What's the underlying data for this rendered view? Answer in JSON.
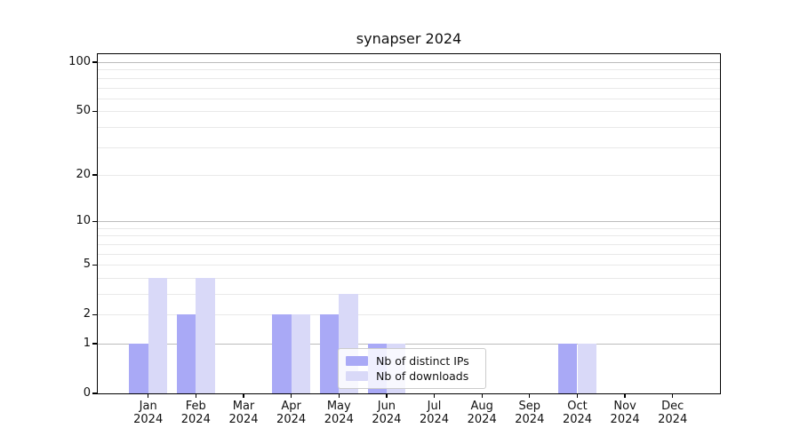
{
  "title": "synapser 2024",
  "legend": {
    "items": [
      {
        "label": "Nb of distinct IPs",
        "series": "ips"
      },
      {
        "label": "Nb of downloads",
        "series": "downloads"
      }
    ]
  },
  "colors": {
    "distinct_ips_bar": "#a9a9f6",
    "downloads_bar": "#d9d9f8",
    "grid_decade": "#bcbcbc",
    "grid_minor": "#e9e9e9",
    "axis": "#000000",
    "background": "#ffffff"
  },
  "chart_data": {
    "type": "bar",
    "title": "synapser 2024",
    "categories": [
      "Jan",
      "Feb",
      "Mar",
      "Apr",
      "May",
      "Jun",
      "Jul",
      "Aug",
      "Sep",
      "Oct",
      "Nov",
      "Dec"
    ],
    "category_year": "2024",
    "series": [
      {
        "name": "Nb of distinct IPs",
        "color": "#a9a9f6",
        "values": [
          1,
          2,
          0,
          2,
          2,
          1,
          0,
          0,
          0,
          1,
          0,
          0
        ]
      },
      {
        "name": "Nb of downloads",
        "color": "#d9d9f8",
        "values": [
          4,
          4,
          0,
          2,
          3,
          1,
          0,
          0,
          0,
          1,
          0,
          0
        ]
      }
    ],
    "ylabel": "",
    "xlabel": "",
    "y_scale": "log1p",
    "ylim": [
      0,
      100
    ],
    "y_tick_labels": [
      0,
      1,
      2,
      5,
      10,
      20,
      50,
      100
    ],
    "y_decade_gridlines": [
      1,
      10,
      100
    ],
    "y_minor_gridlines": [
      2,
      3,
      4,
      5,
      6,
      7,
      8,
      9,
      20,
      30,
      40,
      50,
      60,
      70,
      80,
      90
    ],
    "grid": true,
    "legend_position": "lower center"
  }
}
